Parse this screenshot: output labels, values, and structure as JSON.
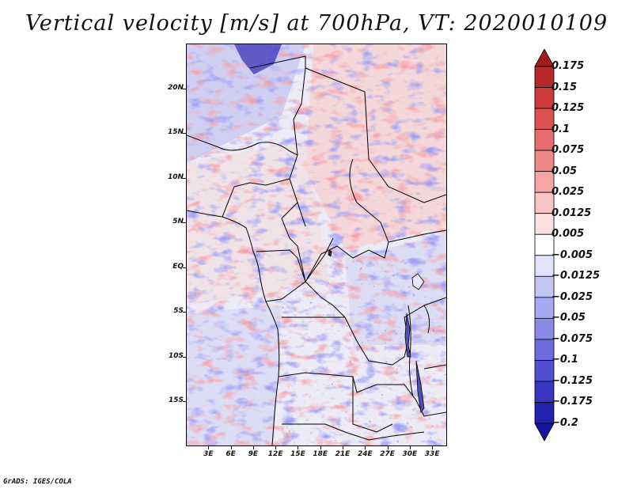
{
  "title": "Vertical velocity [m/s] at 700hPa, VT: 2020010109",
  "footer": "GrADS: IGES/COLA",
  "map": {
    "variable": "Vertical velocity",
    "units": "m/s",
    "level": "700hPa",
    "valid_time": "2020010109",
    "lon_range": [
      0,
      35
    ],
    "lat_range": [
      -20,
      25
    ],
    "lat_labels": [
      "20N",
      "15N",
      "10N",
      "5N",
      "EQ",
      "5S",
      "10S",
      "15S"
    ],
    "lat_values": [
      20,
      15,
      10,
      5,
      0,
      -5,
      -10,
      -15
    ],
    "lon_labels": [
      "3E",
      "6E",
      "9E",
      "12E",
      "15E",
      "18E",
      "21E",
      "24E",
      "27E",
      "30E",
      "33E"
    ],
    "lon_values": [
      3,
      6,
      9,
      12,
      15,
      18,
      21,
      24,
      27,
      30,
      33
    ]
  },
  "colorbar": {
    "labels": [
      "0.175",
      "0.15",
      "0.125",
      "0.1",
      "0.075",
      "0.05",
      "0.025",
      "0.0125",
      "0.005",
      "−0.005",
      "−0.0125",
      "−0.025",
      "−0.05",
      "−0.075",
      "−0.1",
      "−0.125",
      "−0.175",
      "−0.2"
    ],
    "colors": [
      "#a11d1d",
      "#b8292a",
      "#cc3a3a",
      "#dc5252",
      "#e66d6d",
      "#ee8888",
      "#f4a6a6",
      "#f8c4c4",
      "#fbe1e1",
      "#ffffff",
      "#e2e2fa",
      "#c6c6f6",
      "#a8a8f0",
      "#8a8ae6",
      "#6c6cdc",
      "#4f4fcf",
      "#3636c0",
      "#2222ad",
      "#1515a0"
    ]
  }
}
